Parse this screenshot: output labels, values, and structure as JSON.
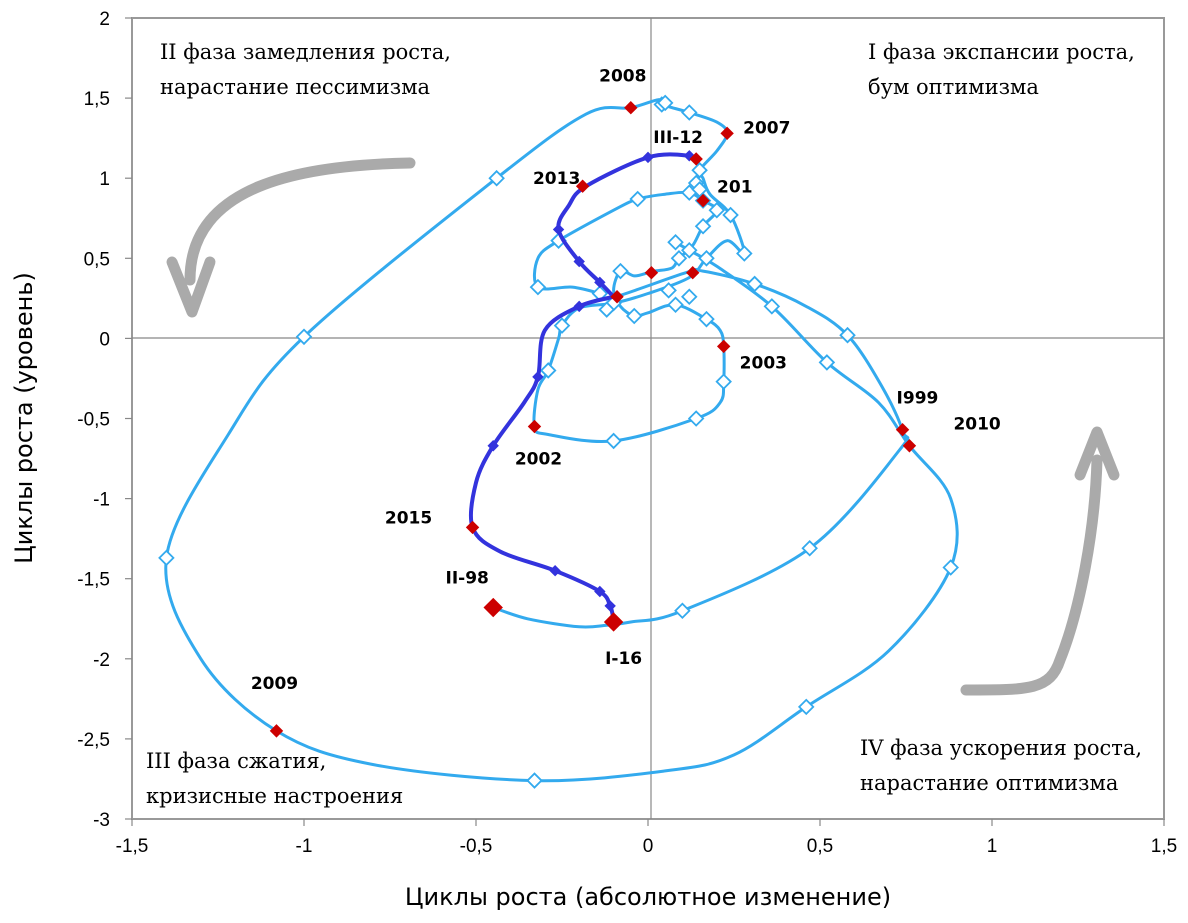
{
  "chart_data": {
    "type": "line",
    "xlabel": "Циклы роста (абсолютное изменение)",
    "ylabel": "Циклы роста (уровень)",
    "xlim": [
      -1.5,
      1.5
    ],
    "ylim": [
      -3,
      2
    ],
    "xticks": [
      "-1,5",
      "-1",
      "-0,5",
      "0",
      "0,5",
      "1",
      "1,5"
    ],
    "yticks": [
      "-3",
      "-2,5",
      "-2",
      "-1,5",
      "-1",
      "-0,5",
      "0",
      "0,5",
      "1",
      "1,5",
      "2"
    ],
    "x_tick_values": [
      -1.5,
      -1,
      -0.5,
      0,
      0.5,
      1,
      1.5
    ],
    "y_tick_values": [
      -3,
      -2.5,
      -2,
      -1.5,
      -1,
      -0.5,
      0,
      0.5,
      1,
      1.5,
      2
    ],
    "grid": false,
    "colors": {
      "light_series": "#33aaee",
      "dark_series": "#3333dd",
      "year_marker": "#cc0000",
      "arrow": "#aaaaaa",
      "frame": "#999999"
    },
    "phases": [
      {
        "lines": [
          "I фаза экспансии роста,",
          "бум оптимизма"
        ]
      },
      {
        "lines": [
          "II фаза замедления роста,",
          "нарастание пессимизма"
        ]
      },
      {
        "lines": [
          "III фаза сжатия,",
          "кризисные настроения"
        ]
      },
      {
        "lines": [
          "IV фаза ускорения роста,",
          "нарастание оптимизма"
        ]
      }
    ],
    "series": [
      {
        "points": [
          [
            -0.45,
            -1.68
          ],
          [
            -0.35,
            -1.75
          ],
          [
            -0.2,
            -1.8
          ],
          [
            -0.12,
            -1.79
          ],
          [
            -0.05,
            -1.77
          ],
          [
            0.1,
            -1.7
          ],
          [
            0.47,
            -1.31
          ],
          [
            0.73,
            -0.7
          ],
          [
            0.74,
            -0.58
          ],
          [
            0.68,
            -0.3
          ],
          [
            0.58,
            0.02
          ],
          [
            0.46,
            0.2
          ],
          [
            0.31,
            0.34
          ],
          [
            0.16,
            0.42
          ],
          [
            0.11,
            0.41
          ],
          [
            -0.11,
            0.25
          ],
          [
            -0.14,
            0.28
          ],
          [
            -0.22,
            0.32
          ],
          [
            -0.32,
            0.32
          ],
          [
            -0.32,
            0.5
          ],
          [
            -0.26,
            0.61
          ],
          [
            -0.1,
            0.8
          ],
          [
            -0.03,
            0.87
          ],
          [
            0.05,
            0.9
          ],
          [
            0.12,
            0.91
          ],
          [
            0.16,
            0.86
          ],
          [
            0.2,
            0.8
          ],
          [
            0.16,
            0.7
          ],
          [
            0.13,
            0.58
          ],
          [
            0.09,
            0.5
          ],
          [
            0.07,
            0.44
          ],
          [
            0.02,
            0.42
          ],
          [
            0.0,
            0.41
          ],
          [
            -0.04,
            0.39
          ],
          [
            -0.08,
            0.42
          ],
          [
            -0.1,
            0.3
          ],
          [
            -0.08,
            0.2
          ],
          [
            -0.04,
            0.14
          ],
          [
            0.0,
            0.16
          ],
          [
            0.08,
            0.21
          ],
          [
            0.17,
            0.12
          ],
          [
            0.21,
            0.05
          ],
          [
            0.22,
            -0.05
          ],
          [
            0.22,
            -0.27
          ],
          [
            0.21,
            -0.4
          ],
          [
            0.14,
            -0.5
          ],
          [
            -0.1,
            -0.64
          ],
          [
            -0.29,
            -0.6
          ],
          [
            -0.33,
            -0.55
          ],
          [
            -0.32,
            -0.32
          ],
          [
            -0.29,
            -0.2
          ],
          [
            -0.26,
            0.0
          ],
          [
            -0.25,
            0.08
          ],
          [
            -0.2,
            0.19
          ],
          [
            -0.1,
            0.22
          ],
          [
            0.0,
            0.28
          ],
          [
            0.12,
            0.38
          ],
          [
            0.17,
            0.5
          ],
          [
            0.23,
            0.61
          ],
          [
            0.28,
            0.53
          ],
          [
            0.24,
            0.77
          ],
          [
            0.18,
            0.9
          ],
          [
            0.16,
            1.0
          ],
          [
            0.15,
            1.05
          ],
          [
            0.2,
            1.17
          ],
          [
            0.23,
            1.28
          ],
          [
            0.2,
            1.35
          ],
          [
            0.12,
            1.41
          ],
          [
            0.04,
            1.46
          ],
          [
            0.03,
            1.49
          ],
          [
            -0.05,
            1.44
          ],
          [
            -0.18,
            1.4
          ],
          [
            -0.44,
            1.0
          ],
          [
            -1.0,
            0.01
          ],
          [
            -1.22,
            -0.6
          ],
          [
            -1.4,
            -1.37
          ],
          [
            -1.3,
            -2.0
          ],
          [
            -1.08,
            -2.45
          ],
          [
            -0.8,
            -2.66
          ],
          [
            -0.33,
            -2.76
          ],
          [
            0.05,
            -2.7
          ],
          [
            0.25,
            -2.6
          ],
          [
            0.46,
            -2.3
          ],
          [
            0.7,
            -1.95
          ],
          [
            0.88,
            -1.43
          ],
          [
            0.88,
            -1.0
          ],
          [
            0.76,
            -0.67
          ],
          [
            0.67,
            -0.4
          ],
          [
            0.52,
            -0.15
          ],
          [
            0.36,
            0.2
          ],
          [
            0.2,
            0.45
          ],
          [
            0.12,
            0.55
          ],
          [
            0.08,
            0.6
          ]
        ],
        "open_markers": [
          [
            0.1,
            -1.7
          ],
          [
            0.47,
            -1.31
          ],
          [
            0.58,
            0.02
          ],
          [
            0.31,
            0.34
          ],
          [
            -0.14,
            0.28
          ],
          [
            -0.32,
            0.32
          ],
          [
            -0.26,
            0.61
          ],
          [
            0.12,
            0.91
          ],
          [
            0.16,
            0.86
          ],
          [
            0.2,
            0.8
          ],
          [
            0.16,
            0.7
          ],
          [
            0.09,
            0.5
          ],
          [
            -0.08,
            0.42
          ],
          [
            -0.04,
            0.14
          ],
          [
            0.08,
            0.21
          ],
          [
            0.17,
            0.12
          ],
          [
            0.22,
            -0.27
          ],
          [
            0.14,
            -0.5
          ],
          [
            -0.1,
            -0.64
          ],
          [
            -0.29,
            -0.2
          ],
          [
            -0.25,
            0.08
          ],
          [
            -0.1,
            0.22
          ],
          [
            0.17,
            0.5
          ],
          [
            0.28,
            0.53
          ],
          [
            0.24,
            0.77
          ],
          [
            0.15,
            1.05
          ],
          [
            0.12,
            1.41
          ],
          [
            0.04,
            1.46
          ],
          [
            -0.44,
            1.0
          ],
          [
            -1.0,
            0.01
          ],
          [
            -1.4,
            -1.37
          ],
          [
            -0.33,
            -2.76
          ],
          [
            0.46,
            -2.3
          ],
          [
            0.88,
            -1.43
          ],
          [
            0.52,
            -0.15
          ],
          [
            0.36,
            0.2
          ],
          [
            0.12,
            0.55
          ],
          [
            0.08,
            0.6
          ],
          [
            -0.03,
            0.87
          ],
          [
            0.06,
            0.3
          ],
          [
            0.12,
            0.26
          ],
          [
            0.14,
            0.97
          ],
          [
            0.15,
            0.93
          ],
          [
            0.05,
            1.47
          ],
          [
            -0.12,
            0.18
          ]
        ]
      },
      {
        "points": [
          [
            -0.1,
            0.26
          ],
          [
            -0.2,
            0.2
          ],
          [
            -0.3,
            0.05
          ],
          [
            -0.32,
            -0.24
          ],
          [
            -0.36,
            -0.4
          ],
          [
            -0.45,
            -0.67
          ],
          [
            -0.5,
            -0.9
          ],
          [
            -0.51,
            -1.18
          ],
          [
            -0.43,
            -1.33
          ],
          [
            -0.27,
            -1.45
          ],
          [
            -0.14,
            -1.58
          ],
          [
            -0.11,
            -1.67
          ],
          [
            -0.1,
            -1.76
          ]
        ],
        "second_points": [
          [
            -0.1,
            0.26
          ],
          [
            -0.14,
            0.35
          ],
          [
            -0.2,
            0.48
          ],
          [
            -0.26,
            0.68
          ],
          [
            -0.23,
            0.83
          ],
          [
            -0.18,
            0.95
          ],
          [
            0.0,
            1.13
          ],
          [
            0.12,
            1.14
          ],
          [
            0.14,
            1.1
          ]
        ],
        "markers": [
          [
            -0.2,
            0.2
          ],
          [
            -0.32,
            -0.24
          ],
          [
            -0.45,
            -0.67
          ],
          [
            -0.27,
            -1.45
          ],
          [
            -0.14,
            -1.58
          ],
          [
            -0.11,
            -1.67
          ],
          [
            -0.14,
            0.35
          ],
          [
            -0.2,
            0.48
          ],
          [
            -0.26,
            0.68
          ],
          [
            0.0,
            1.13
          ],
          [
            0.12,
            1.14
          ]
        ]
      }
    ],
    "year_points": [
      {
        "label": "2008",
        "x": -0.05,
        "y": 1.44
      },
      {
        "label": "2007",
        "x": 0.23,
        "y": 1.28
      },
      {
        "label": "III-12",
        "x": 0.14,
        "y": 1.12
      },
      {
        "label": "2013",
        "x": -0.19,
        "y": 0.95
      },
      {
        "label": "201",
        "x": 0.16,
        "y": 0.86
      },
      {
        "label": "2003",
        "x": 0.22,
        "y": -0.05
      },
      {
        "label": "I999",
        "x": 0.74,
        "y": -0.57
      },
      {
        "label": "2010",
        "x": 0.76,
        "y": -0.67
      },
      {
        "label": "2002",
        "x": -0.33,
        "y": -0.55
      },
      {
        "label": "2015",
        "x": -0.51,
        "y": -1.18
      },
      {
        "label": "II-98",
        "x": -0.45,
        "y": -1.68
      },
      {
        "label": "I-16",
        "x": -0.1,
        "y": -1.77
      },
      {
        "label": "2009",
        "x": -1.08,
        "y": -2.45
      }
    ],
    "extra_red_points": [
      [
        0.01,
        0.41
      ],
      [
        0.13,
        0.41
      ],
      [
        -0.09,
        0.26
      ]
    ]
  }
}
